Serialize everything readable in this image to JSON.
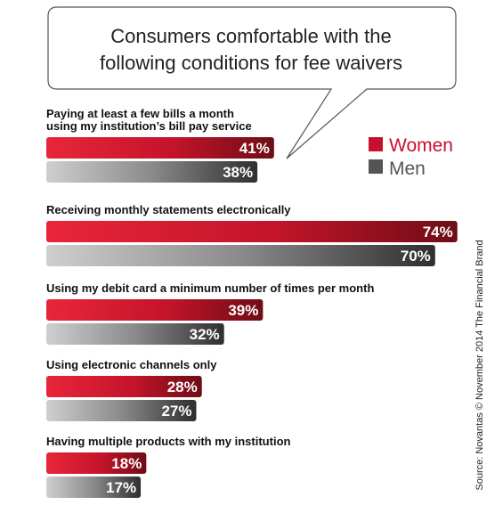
{
  "chart_data": {
    "type": "bar",
    "orientation": "horizontal",
    "title_lines": [
      "Consumers comfortable with the",
      "following conditions for fee waivers"
    ],
    "categories": [
      [
        "Paying at least a few bills a month",
        "using my institution’s bill pay service"
      ],
      [
        "Receiving monthly statements electronically"
      ],
      [
        "Using my debit card a minimum number of times per month"
      ],
      [
        "Using electronic channels only"
      ],
      [
        "Having multiple products with my institution"
      ]
    ],
    "series": [
      {
        "name": "Women",
        "values": [
          41,
          74,
          39,
          28,
          18
        ],
        "labels": [
          "41%",
          "74%",
          "39%",
          "28%",
          "18%"
        ],
        "color": "#c8102e"
      },
      {
        "name": "Men",
        "values": [
          38,
          70,
          32,
          27,
          17
        ],
        "labels": [
          "38%",
          "70%",
          "32%",
          "27%",
          "17%"
        ],
        "color": "#555555"
      }
    ],
    "xlim": [
      0,
      100
    ],
    "legend_position": "top-right",
    "source": "Source: Novantas © November 2014  The Financial Brand"
  }
}
